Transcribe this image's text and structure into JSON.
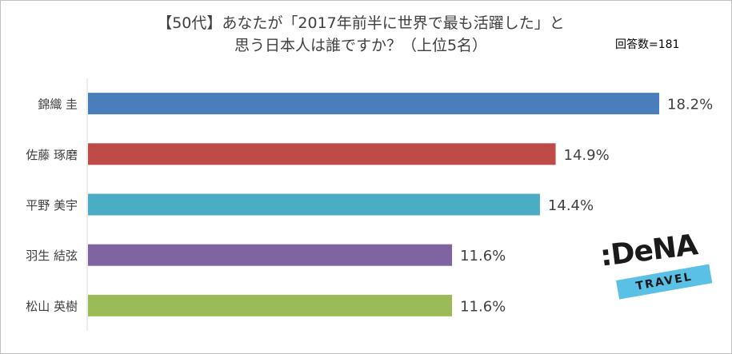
{
  "chart_title_line1": "【50代】あなたが「2017年前半に世界で最も活躍した」と",
  "chart_title_line2": "思う日本人は誰ですか？（上位5名）",
  "sample_note": "回答数=181",
  "logo": {
    "brand": ":DeNA",
    "band": "TRAVEL"
  },
  "chart_data": {
    "type": "bar",
    "orientation": "horizontal",
    "title": "【50代】あなたが「2017年前半に世界で最も活躍した」と思う日本人は誰ですか？（上位5名）",
    "categories": [
      "錦織 圭",
      "佐藤 琢磨",
      "平野 美宇",
      "羽生 結弦",
      "松山 英樹"
    ],
    "values": [
      18.2,
      14.9,
      14.4,
      11.6,
      11.6
    ],
    "value_labels": [
      "18.2%",
      "14.9%",
      "14.4%",
      "11.6%",
      "11.6%"
    ],
    "colors": [
      "#4a7ebb",
      "#be4b48",
      "#4bacc6",
      "#8064a2",
      "#9bbb59"
    ],
    "unit": "%",
    "xlim": [
      0,
      20
    ],
    "grid": false,
    "legend": "none"
  }
}
